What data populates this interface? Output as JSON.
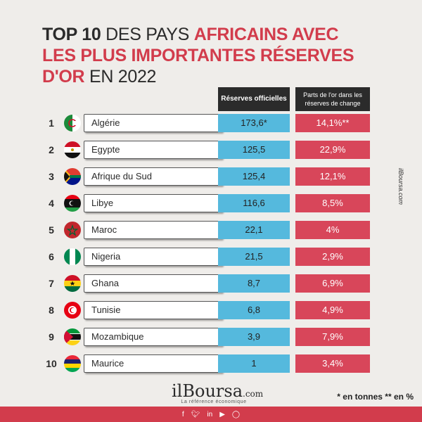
{
  "title": {
    "p1": "TOP 10",
    "p2": " DES PAYS ",
    "p3": "AFRICAINS AVEC",
    "p4": "LES  PLUS IMPORTANTES RÉSERVES",
    "p5": "D'OR",
    "p6": " EN 2022"
  },
  "headers": {
    "col1": "Réserves officielles",
    "col2": "Parts de l'or dans les réserves de change"
  },
  "chart_data": {
    "type": "table",
    "columns": [
      "Réserves officielles",
      "Parts de l'or dans les réserves de change"
    ],
    "rows": [
      {
        "rank": "1",
        "country": "Algérie",
        "reserves": "173,6*",
        "share": "14,1%**"
      },
      {
        "rank": "2",
        "country": "Egypte",
        "reserves": "125,5",
        "share": "22,9%"
      },
      {
        "rank": "3",
        "country": "Afrique du Sud",
        "reserves": "125,4",
        "share": "12,1%"
      },
      {
        "rank": "4",
        "country": "Libye",
        "reserves": "116,6",
        "share": "8,5%"
      },
      {
        "rank": "5",
        "country": "Maroc",
        "reserves": "22,1",
        "share": "4%"
      },
      {
        "rank": "6",
        "country": "Nigeria",
        "reserves": "21,5",
        "share": "2,9%"
      },
      {
        "rank": "7",
        "country": "Ghana",
        "reserves": "8,7",
        "share": "6,9%"
      },
      {
        "rank": "8",
        "country": "Tunisie",
        "reserves": "6,8",
        "share": "4,9%"
      },
      {
        "rank": "9",
        "country": "Mozambique",
        "reserves": "3,9",
        "share": "7,9%"
      },
      {
        "rank": "10",
        "country": "Maurice",
        "reserves": "1",
        "share": "3,4%"
      }
    ]
  },
  "footer": {
    "logo_il": "il",
    "logo_boursa": "Boursa",
    "logo_dotcom": ".com",
    "tagline": "La référence économique",
    "note": "* en tonnes  ** en %",
    "side": "ilBoursa.com",
    "social": [
      "f",
      "t",
      "in",
      "yt",
      "ig"
    ]
  },
  "colors": {
    "accent_red": "#d23c4c",
    "blue": "#55b9dd",
    "dark": "#2b2b2b"
  }
}
